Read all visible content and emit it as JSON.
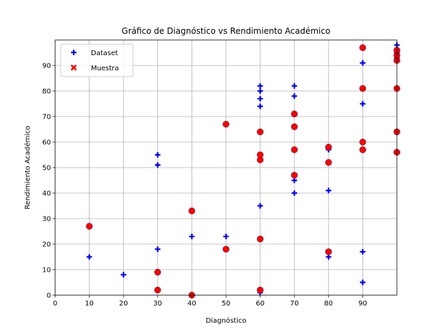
{
  "chart_data": {
    "type": "scatter",
    "title": "Gráfico de Diagnóstico vs Rendimiento Académico",
    "xlabel": "Diagnóstico",
    "ylabel": "Rendimiento Académico",
    "xlim": [
      0,
      100
    ],
    "ylim": [
      0,
      100
    ],
    "xticks": [
      0,
      10,
      20,
      30,
      40,
      50,
      60,
      70,
      80,
      90
    ],
    "yticks": [
      0,
      10,
      20,
      30,
      40,
      50,
      60,
      70,
      80,
      90
    ],
    "grid": true,
    "legend_position": "top-left",
    "series": [
      {
        "name": "Dataset",
        "marker": "plus",
        "color": "#0000ff",
        "points": [
          [
            10,
            15
          ],
          [
            20,
            8
          ],
          [
            30,
            18
          ],
          [
            30,
            51
          ],
          [
            30,
            55
          ],
          [
            40,
            23
          ],
          [
            50,
            23
          ],
          [
            60,
            1
          ],
          [
            60,
            35
          ],
          [
            60,
            74
          ],
          [
            60,
            77
          ],
          [
            60,
            80
          ],
          [
            60,
            82
          ],
          [
            70,
            40
          ],
          [
            70,
            45
          ],
          [
            70,
            78
          ],
          [
            70,
            82
          ],
          [
            80,
            15
          ],
          [
            80,
            41
          ],
          [
            80,
            57
          ],
          [
            90,
            5
          ],
          [
            90,
            17
          ],
          [
            90,
            75
          ],
          [
            90,
            91
          ],
          [
            100,
            93
          ],
          [
            100,
            95
          ],
          [
            100,
            98
          ]
        ]
      },
      {
        "name": "Muestra",
        "marker": "x",
        "color": "#ff0000",
        "points": [
          [
            10,
            27
          ],
          [
            30,
            2
          ],
          [
            30,
            9
          ],
          [
            40,
            0
          ],
          [
            40,
            33
          ],
          [
            50,
            18
          ],
          [
            50,
            67
          ],
          [
            60,
            2
          ],
          [
            60,
            22
          ],
          [
            60,
            53
          ],
          [
            60,
            55
          ],
          [
            60,
            64
          ],
          [
            70,
            47
          ],
          [
            70,
            57
          ],
          [
            70,
            66
          ],
          [
            70,
            71
          ],
          [
            80,
            17
          ],
          [
            80,
            52
          ],
          [
            80,
            58
          ],
          [
            90,
            57
          ],
          [
            90,
            60
          ],
          [
            90,
            81
          ],
          [
            90,
            97
          ],
          [
            100,
            56
          ],
          [
            100,
            64
          ],
          [
            100,
            81
          ],
          [
            100,
            92
          ],
          [
            100,
            94
          ],
          [
            100,
            96
          ]
        ]
      }
    ]
  }
}
